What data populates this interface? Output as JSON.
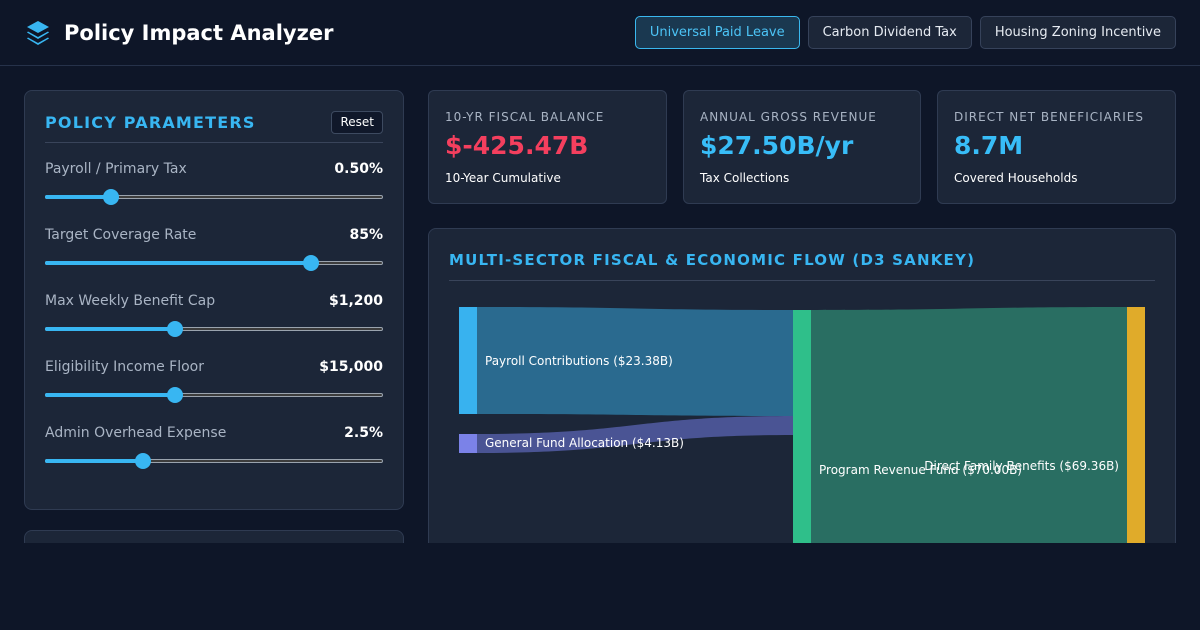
{
  "app": {
    "title": "Policy Impact Analyzer",
    "logo_icon": "stacked-layers-icon"
  },
  "policy_tabs": [
    {
      "label": "Universal Paid Leave",
      "active": true
    },
    {
      "label": "Carbon Dividend Tax",
      "active": false
    },
    {
      "label": "Housing Zoning Incentive",
      "active": false
    }
  ],
  "parameters": {
    "title": "POLICY PARAMETERS",
    "reset_label": "Reset",
    "items": [
      {
        "label": "Payroll / Primary Tax",
        "value": "0.50%",
        "fraction": 0.18
      },
      {
        "label": "Target Coverage Rate",
        "value": "85%",
        "fraction": 0.8
      },
      {
        "label": "Max Weekly Benefit Cap",
        "value": "$1,200",
        "fraction": 0.38
      },
      {
        "label": "Eligibility Income Floor",
        "value": "$15,000",
        "fraction": 0.38
      },
      {
        "label": "Admin Overhead Expense",
        "value": "2.5%",
        "fraction": 0.28
      }
    ]
  },
  "kpis": [
    {
      "label": "10-YR FISCAL BALANCE",
      "value": "$-425.47B",
      "sub": "10-Year Cumulative",
      "color": "#f43f5e"
    },
    {
      "label": "ANNUAL GROSS REVENUE",
      "value": "$27.50B/yr",
      "sub": "Tax Collections",
      "color": "#38bdf8"
    },
    {
      "label": "DIRECT NET BENEFICIARIES",
      "value": "8.7M",
      "sub": "Covered Households",
      "color": "#38bdf8"
    }
  ],
  "flow": {
    "title": "MULTI-SECTOR FISCAL & ECONOMIC FLOW (D3 SANKEY)",
    "nodes": [
      {
        "id": "payroll",
        "label": "Payroll Contributions ($23.38B)",
        "value": 23.38,
        "color": "#38b2ef"
      },
      {
        "id": "general",
        "label": "General Fund Allocation ($4.13B)",
        "value": 4.13,
        "color": "#7b82e8"
      },
      {
        "id": "program",
        "label": "Program Revenue Fund ($70.00B)",
        "value": 70.0,
        "color": "#2fbf8a"
      },
      {
        "id": "benefits",
        "label": "Direct Family Benefits ($69.36B)",
        "value": 69.36,
        "color": "#e0ab2a"
      }
    ],
    "links": [
      {
        "source": "payroll",
        "target": "program",
        "value": 23.38,
        "color": "#2a6a8f"
      },
      {
        "source": "general",
        "target": "program",
        "value": 4.13,
        "color": "#4a5494"
      },
      {
        "source": "program",
        "target": "benefits",
        "value": 69.36,
        "color": "#296e62"
      }
    ]
  }
}
